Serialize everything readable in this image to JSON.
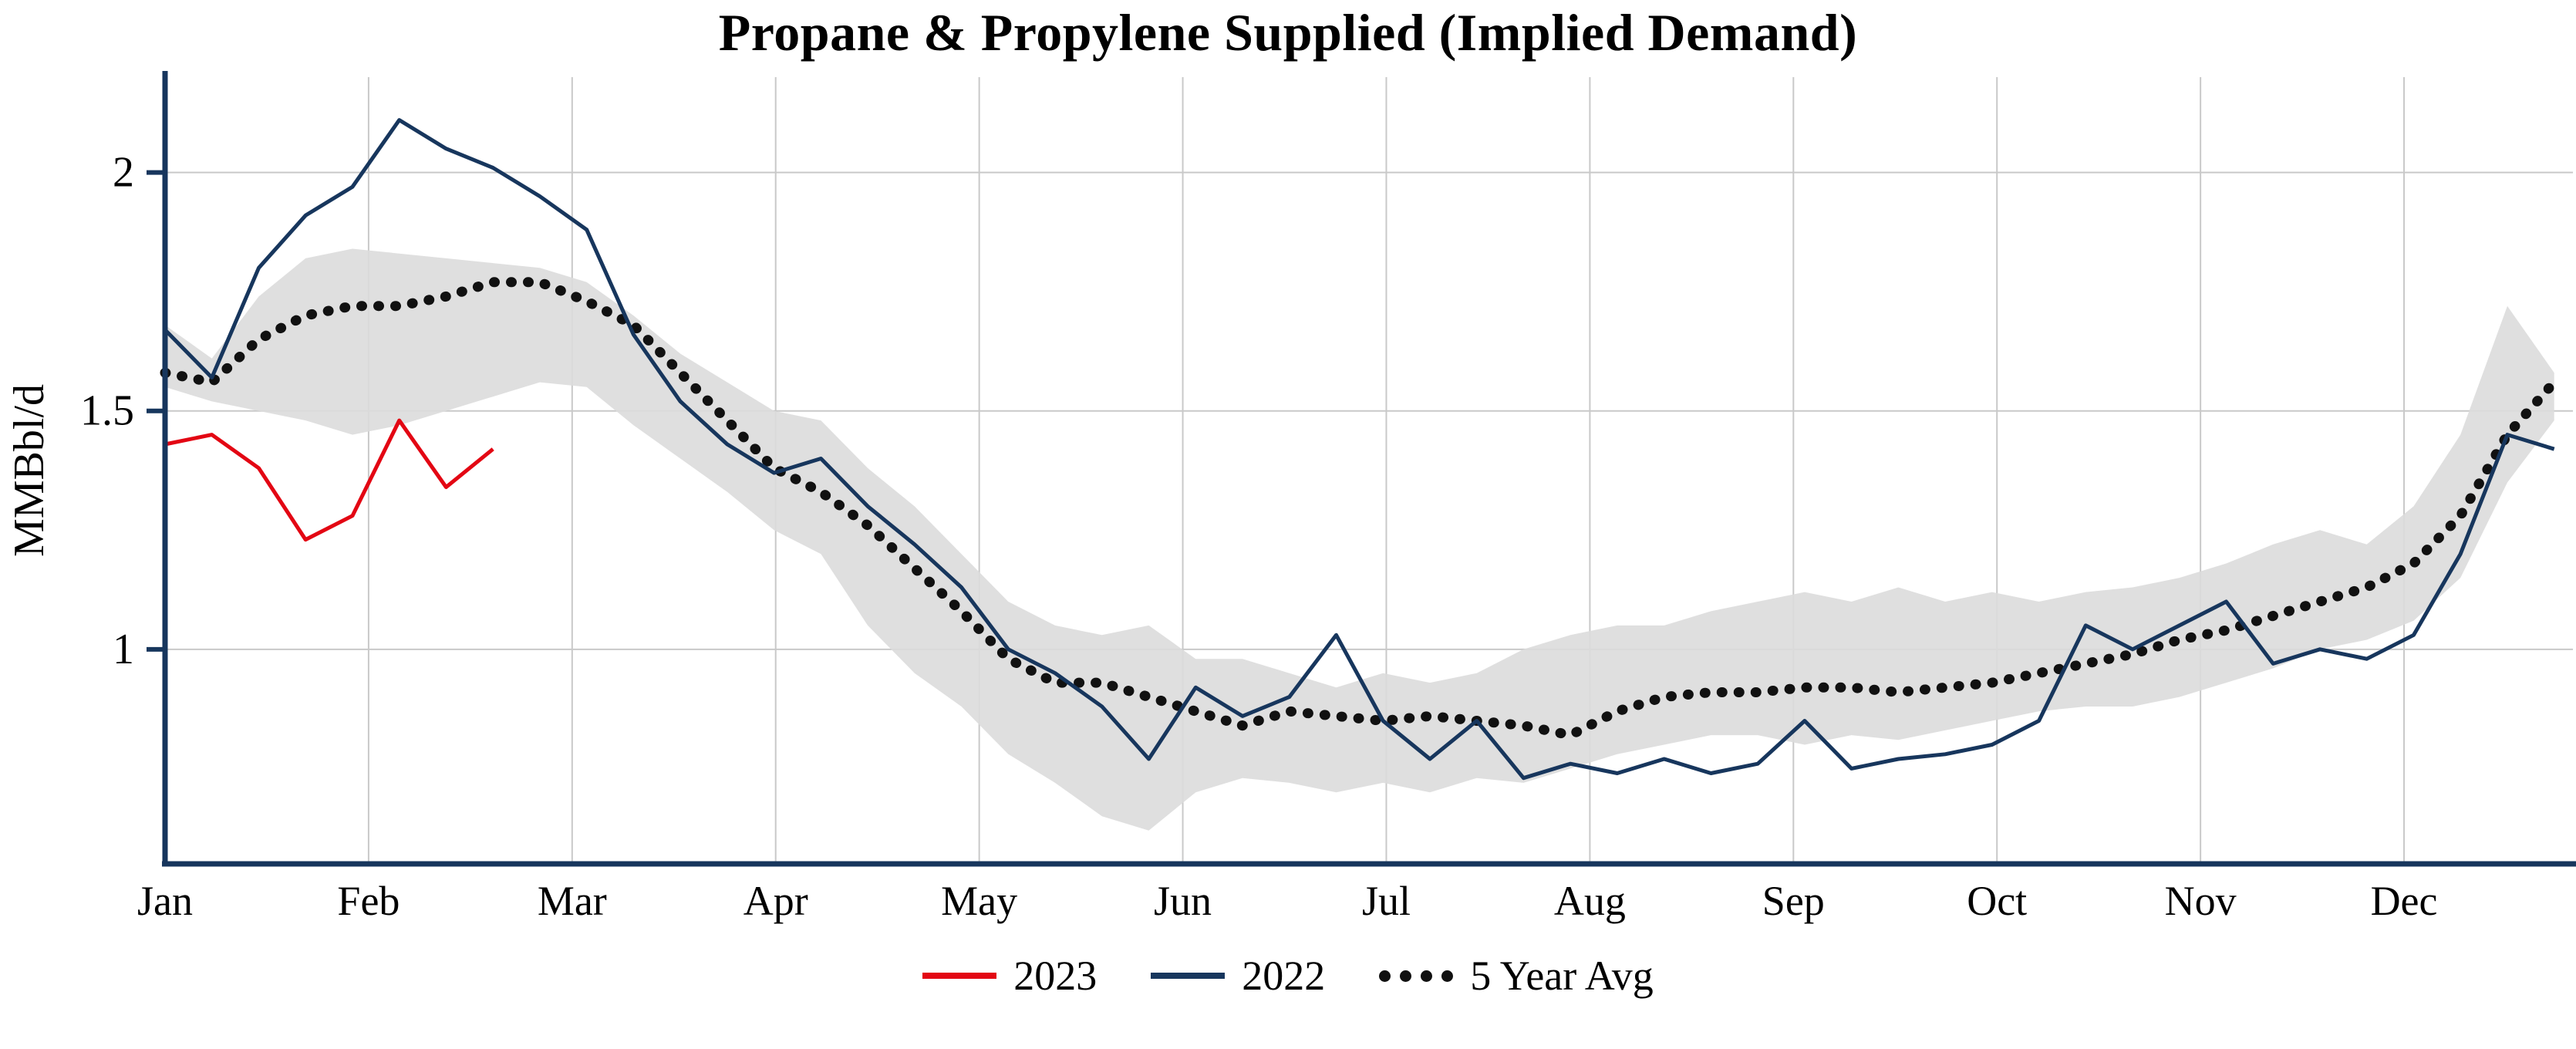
{
  "title": "Propane & Propylene Supplied (Implied Demand)",
  "chart_data": {
    "type": "line",
    "title": "Propane & Propylene Supplied (Implied Demand)",
    "xlabel": "",
    "ylabel": "MMBbl/d",
    "x_unit": "week-of-year",
    "month_ticks": [
      "Jan",
      "Feb",
      "Mar",
      "Apr",
      "May",
      "Jun",
      "Jul",
      "Aug",
      "Sep",
      "Oct",
      "Nov",
      "Dec"
    ],
    "weeks_per_month": 4.345,
    "weeks_visible": 51.4,
    "yticks": [
      1,
      1.5,
      2
    ],
    "ylim": [
      0.55,
      2.2
    ],
    "grid": {
      "vertical": true,
      "horizontal": true,
      "color": "#c9c9c9"
    },
    "axis_color": "#17365d",
    "band": {
      "name": "5-year-range",
      "color": "#dcdcdc",
      "max": [
        1.68,
        1.61,
        1.74,
        1.82,
        1.84,
        1.83,
        1.82,
        1.81,
        1.8,
        1.77,
        1.7,
        1.62,
        1.56,
        1.5,
        1.48,
        1.38,
        1.3,
        1.2,
        1.1,
        1.05,
        1.03,
        1.05,
        0.98,
        0.98,
        0.95,
        0.92,
        0.95,
        0.93,
        0.95,
        1.0,
        1.03,
        1.05,
        1.05,
        1.08,
        1.1,
        1.12,
        1.1,
        1.13,
        1.1,
        1.12,
        1.1,
        1.12,
        1.13,
        1.15,
        1.18,
        1.22,
        1.25,
        1.22,
        1.3,
        1.45,
        1.72,
        1.58
      ],
      "min": [
        1.55,
        1.52,
        1.5,
        1.48,
        1.45,
        1.47,
        1.5,
        1.53,
        1.56,
        1.55,
        1.47,
        1.4,
        1.33,
        1.25,
        1.2,
        1.05,
        0.95,
        0.88,
        0.78,
        0.72,
        0.65,
        0.62,
        0.7,
        0.73,
        0.72,
        0.7,
        0.72,
        0.7,
        0.73,
        0.72,
        0.75,
        0.78,
        0.8,
        0.82,
        0.82,
        0.8,
        0.82,
        0.81,
        0.83,
        0.85,
        0.87,
        0.88,
        0.88,
        0.9,
        0.93,
        0.96,
        1.0,
        1.02,
        1.06,
        1.15,
        1.35,
        1.48
      ]
    },
    "series": [
      {
        "name": "5 Year Avg",
        "color": "#111111",
        "style": "dotted",
        "start_week": 0,
        "values": [
          1.58,
          1.56,
          1.65,
          1.7,
          1.72,
          1.72,
          1.74,
          1.77,
          1.77,
          1.73,
          1.68,
          1.58,
          1.48,
          1.38,
          1.33,
          1.26,
          1.17,
          1.08,
          0.98,
          0.93,
          0.93,
          0.9,
          0.87,
          0.84,
          0.87,
          0.86,
          0.85,
          0.86,
          0.85,
          0.84,
          0.82,
          0.87,
          0.9,
          0.91,
          0.91,
          0.92,
          0.92,
          0.91,
          0.92,
          0.93,
          0.95,
          0.97,
          0.99,
          1.02,
          1.04,
          1.07,
          1.1,
          1.13,
          1.18,
          1.28,
          1.45,
          1.56
        ]
      },
      {
        "name": "2022",
        "color": "#17365d",
        "style": "solid",
        "start_week": 0,
        "values": [
          1.67,
          1.57,
          1.8,
          1.91,
          1.97,
          2.11,
          2.05,
          2.01,
          1.95,
          1.88,
          1.66,
          1.52,
          1.43,
          1.37,
          1.4,
          1.3,
          1.22,
          1.13,
          1.0,
          0.95,
          0.88,
          0.77,
          0.92,
          0.86,
          0.9,
          1.03,
          0.85,
          0.77,
          0.85,
          0.73,
          0.76,
          0.74,
          0.77,
          0.74,
          0.76,
          0.85,
          0.75,
          0.77,
          0.78,
          0.8,
          0.85,
          1.05,
          1.0,
          1.05,
          1.1,
          0.97,
          1.0,
          0.98,
          1.03,
          1.2,
          1.45,
          1.42
        ]
      },
      {
        "name": "2023",
        "color": "#e30613",
        "style": "solid",
        "start_week": 0,
        "values": [
          1.43,
          1.45,
          1.38,
          1.23,
          1.28,
          1.48,
          1.34,
          1.42
        ]
      }
    ],
    "legend": [
      {
        "label": "2023",
        "color": "#e30613",
        "style": "solid"
      },
      {
        "label": "2022",
        "color": "#17365d",
        "style": "solid"
      },
      {
        "label": "5 Year Avg",
        "color": "#111111",
        "style": "dotted"
      }
    ],
    "legend_position": "bottom-center"
  }
}
